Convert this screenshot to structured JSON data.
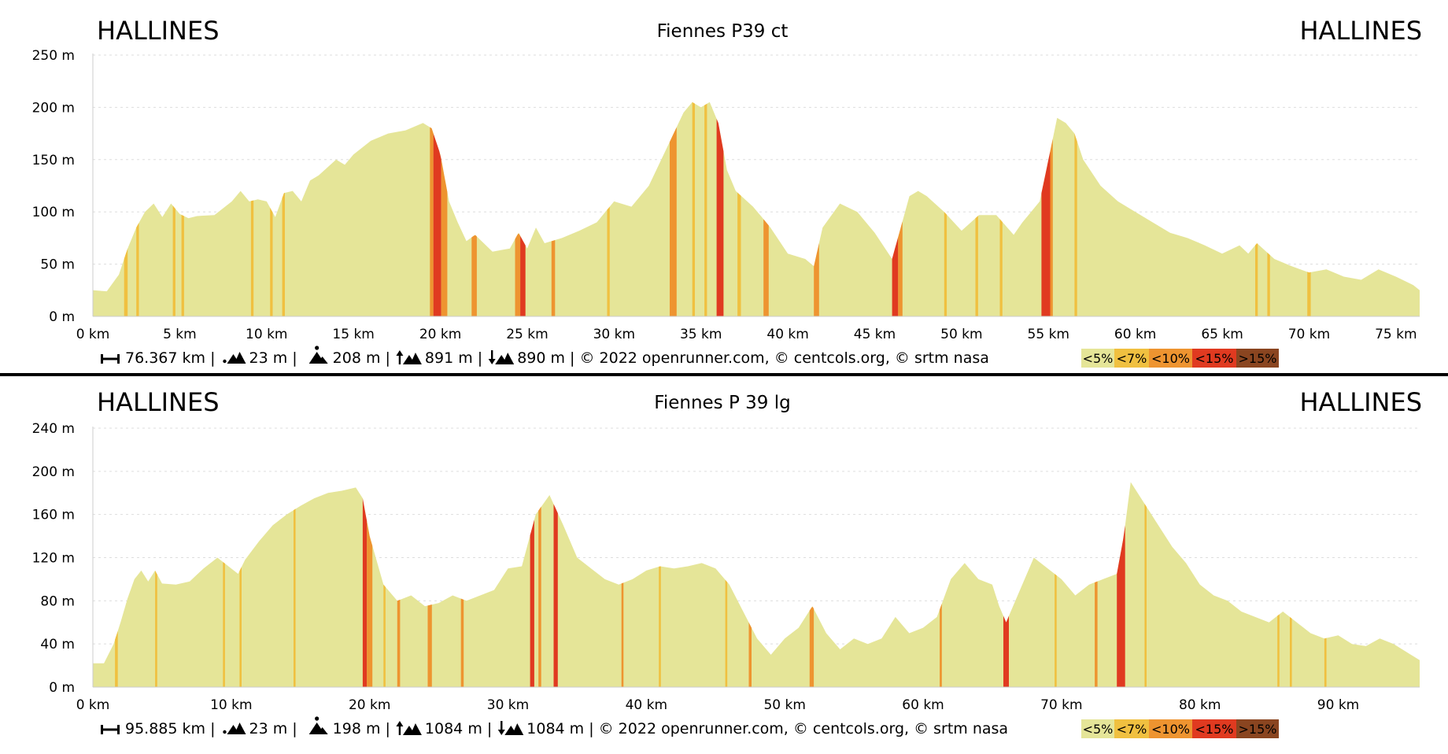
{
  "legend": [
    {
      "label": "<5%",
      "color": "#e5e598"
    },
    {
      "label": "<7%",
      "color": "#f0c040"
    },
    {
      "label": "<10%",
      "color": "#ee9430"
    },
    {
      "label": "<15%",
      "color": "#e03a20"
    },
    {
      "label": ">15%",
      "color": "#8a4520"
    }
  ],
  "chart_data": [
    {
      "type": "area",
      "title": "Fiennes P39 ct",
      "start_place": "HALLINES",
      "end_place": "HALLINES",
      "xlabel": "",
      "ylabel": "",
      "xlim": [
        0,
        76.367
      ],
      "ylim": [
        0,
        250
      ],
      "x_ticks": [
        0,
        5,
        10,
        15,
        20,
        25,
        30,
        35,
        40,
        45,
        50,
        55,
        60,
        65,
        70,
        75
      ],
      "x_tick_labels": [
        "0 km",
        "5 km",
        "10 km",
        "15 km",
        "20 km",
        "25 km",
        "30 km",
        "35 km",
        "40 km",
        "45 km",
        "50 km",
        "55 km",
        "60 km",
        "65 km",
        "70 km",
        "75 km"
      ],
      "y_ticks": [
        0,
        50,
        100,
        150,
        200,
        250
      ],
      "y_tick_labels": [
        "0 m",
        "50 m",
        "100 m",
        "150 m",
        "200 m",
        "250 m"
      ],
      "grid": true,
      "profile": {
        "x": [
          0,
          0.8,
          1.5,
          2.0,
          2.5,
          3.0,
          3.5,
          4.0,
          4.5,
          5.0,
          5.5,
          6.0,
          7.0,
          8.0,
          8.5,
          9.0,
          9.5,
          10.0,
          10.5,
          11.0,
          11.5,
          12.0,
          12.5,
          13.0,
          14.0,
          14.5,
          15.0,
          16.0,
          17.0,
          18.0,
          19.0,
          19.5,
          20.0,
          20.5,
          21.0,
          21.5,
          22.0,
          22.5,
          23.0,
          24.0,
          24.5,
          25.0,
          25.5,
          26.0,
          27.0,
          28.0,
          29.0,
          30.0,
          31.0,
          32.0,
          33.0,
          34.0,
          34.5,
          35.0,
          35.5,
          36.0,
          36.5,
          37.0,
          38.0,
          38.5,
          39.0,
          40.0,
          41.0,
          41.5,
          42.0,
          43.0,
          44.0,
          45.0,
          46.0,
          46.5,
          47.0,
          47.5,
          48.0,
          49.0,
          50.0,
          51.0,
          52.0,
          53.0,
          53.5,
          54.0,
          54.5,
          55.0,
          55.5,
          56.0,
          56.5,
          57.0,
          58.0,
          59.0,
          60.0,
          61.0,
          62.0,
          63.0,
          64.0,
          65.0,
          66.0,
          66.5,
          67.0,
          68.0,
          69.0,
          70.0,
          71.0,
          72.0,
          73.0,
          74.0,
          75.0,
          76.0,
          76.367
        ],
        "y": [
          25,
          24,
          40,
          65,
          85,
          100,
          108,
          95,
          108,
          98,
          94,
          96,
          97,
          110,
          120,
          110,
          112,
          110,
          95,
          118,
          120,
          110,
          130,
          135,
          150,
          145,
          155,
          168,
          175,
          178,
          185,
          180,
          155,
          110,
          90,
          72,
          78,
          70,
          62,
          65,
          80,
          65,
          85,
          70,
          75,
          82,
          90,
          110,
          105,
          125,
          160,
          195,
          205,
          200,
          205,
          185,
          140,
          120,
          105,
          95,
          85,
          60,
          55,
          48,
          85,
          108,
          100,
          80,
          55,
          85,
          115,
          120,
          115,
          100,
          82,
          97,
          97,
          78,
          90,
          100,
          110,
          150,
          190,
          185,
          175,
          150,
          125,
          110,
          100,
          90,
          80,
          75,
          68,
          60,
          68,
          60,
          70,
          55,
          48,
          42,
          45,
          38,
          35,
          45,
          38,
          30,
          25
        ]
      },
      "gradient_segments": [
        {
          "x0": 1.8,
          "x1": 2.0,
          "grade": "<7%"
        },
        {
          "x0": 2.5,
          "x1": 2.65,
          "grade": "<7%"
        },
        {
          "x0": 4.6,
          "x1": 4.75,
          "grade": "<7%"
        },
        {
          "x0": 5.1,
          "x1": 5.25,
          "grade": "<7%"
        },
        {
          "x0": 9.1,
          "x1": 9.25,
          "grade": "<7%"
        },
        {
          "x0": 10.2,
          "x1": 10.35,
          "grade": "<7%"
        },
        {
          "x0": 10.9,
          "x1": 11.05,
          "grade": "<7%"
        },
        {
          "x0": 19.4,
          "x1": 19.6,
          "grade": "<10%"
        },
        {
          "x0": 19.6,
          "x1": 20.05,
          "grade": "<15%"
        },
        {
          "x0": 20.05,
          "x1": 20.4,
          "grade": "<10%"
        },
        {
          "x0": 21.8,
          "x1": 22.1,
          "grade": "<10%"
        },
        {
          "x0": 24.3,
          "x1": 24.6,
          "grade": "<10%"
        },
        {
          "x0": 24.6,
          "x1": 24.9,
          "grade": "<15%"
        },
        {
          "x0": 26.4,
          "x1": 26.6,
          "grade": "<10%"
        },
        {
          "x0": 29.6,
          "x1": 29.75,
          "grade": "<7%"
        },
        {
          "x0": 33.2,
          "x1": 33.6,
          "grade": "<10%"
        },
        {
          "x0": 34.5,
          "x1": 34.65,
          "grade": "<7%"
        },
        {
          "x0": 35.2,
          "x1": 35.35,
          "grade": "<7%"
        },
        {
          "x0": 35.9,
          "x1": 36.3,
          "grade": "<15%"
        },
        {
          "x0": 37.1,
          "x1": 37.3,
          "grade": "<7%"
        },
        {
          "x0": 38.6,
          "x1": 38.9,
          "grade": "<10%"
        },
        {
          "x0": 41.5,
          "x1": 41.8,
          "grade": "<10%"
        },
        {
          "x0": 46.0,
          "x1": 46.35,
          "grade": "<15%"
        },
        {
          "x0": 46.35,
          "x1": 46.6,
          "grade": "<10%"
        },
        {
          "x0": 49.0,
          "x1": 49.15,
          "grade": "<7%"
        },
        {
          "x0": 50.8,
          "x1": 50.95,
          "grade": "<7%"
        },
        {
          "x0": 52.2,
          "x1": 52.35,
          "grade": "<7%"
        },
        {
          "x0": 54.6,
          "x1": 55.1,
          "grade": "<15%"
        },
        {
          "x0": 55.1,
          "x1": 55.25,
          "grade": "<10%"
        },
        {
          "x0": 56.5,
          "x1": 56.65,
          "grade": "<7%"
        },
        {
          "x0": 66.9,
          "x1": 67.05,
          "grade": "<7%"
        },
        {
          "x0": 67.6,
          "x1": 67.75,
          "grade": "<7%"
        },
        {
          "x0": 69.9,
          "x1": 70.1,
          "grade": "<7%"
        }
      ],
      "stats": {
        "distance": "76.367 km",
        "min_alt": "23 m",
        "max_alt": "208 m",
        "ascent": "891 m",
        "descent": "890 m",
        "credits": "© 2022 openrunner.com, © centcols.org, © srtm nasa"
      }
    },
    {
      "type": "area",
      "title": "Fiennes P 39 lg",
      "start_place": "HALLINES",
      "end_place": "HALLINES",
      "xlabel": "",
      "ylabel": "",
      "xlim": [
        0,
        95.885
      ],
      "ylim": [
        0,
        240
      ],
      "x_ticks": [
        0,
        10,
        20,
        30,
        40,
        50,
        60,
        70,
        80,
        90
      ],
      "x_tick_labels": [
        "0 km",
        "10 km",
        "20 km",
        "30 km",
        "40 km",
        "50 km",
        "60 km",
        "70 km",
        "80 km",
        "90 km"
      ],
      "y_ticks": [
        0,
        40,
        80,
        120,
        160,
        200,
        240
      ],
      "y_tick_labels": [
        "0 m",
        "40 m",
        "80 m",
        "120 m",
        "160 m",
        "200 m",
        "240 m"
      ],
      "grid": true,
      "profile": {
        "x": [
          0,
          0.8,
          1.5,
          2.0,
          2.5,
          3.0,
          3.5,
          4.0,
          4.5,
          5.0,
          6.0,
          7.0,
          8.0,
          9.0,
          10.0,
          10.5,
          11.0,
          12.0,
          13.0,
          14.0,
          15.0,
          16.0,
          17.0,
          18.0,
          19.0,
          19.5,
          20.0,
          21.0,
          22.0,
          23.0,
          24.0,
          25.0,
          26.0,
          27.0,
          28.0,
          29.0,
          30.0,
          31.0,
          32.0,
          33.0,
          34.0,
          35.0,
          36.0,
          37.0,
          38.0,
          39.0,
          40.0,
          41.0,
          42.0,
          43.0,
          44.0,
          45.0,
          46.0,
          47.0,
          48.0,
          49.0,
          50.0,
          51.0,
          52.0,
          53.0,
          54.0,
          55.0,
          56.0,
          57.0,
          58.0,
          59.0,
          60.0,
          61.0,
          62.0,
          63.0,
          64.0,
          65.0,
          65.5,
          66.0,
          67.0,
          68.0,
          69.0,
          70.0,
          71.0,
          72.0,
          73.0,
          74.0,
          74.5,
          75.0,
          76.0,
          77.0,
          78.0,
          79.0,
          80.0,
          81.0,
          82.0,
          83.0,
          84.0,
          85.0,
          86.0,
          87.0,
          88.0,
          89.0,
          90.0,
          91.0,
          92.0,
          93.0,
          94.0,
          95.0,
          95.885
        ],
        "y": [
          22,
          22,
          40,
          60,
          82,
          100,
          108,
          98,
          108,
          96,
          95,
          98,
          110,
          120,
          110,
          105,
          118,
          135,
          150,
          160,
          168,
          175,
          180,
          182,
          185,
          175,
          140,
          95,
          80,
          85,
          75,
          78,
          85,
          80,
          85,
          90,
          110,
          112,
          160,
          178,
          150,
          120,
          110,
          100,
          95,
          100,
          108,
          112,
          110,
          112,
          115,
          110,
          95,
          70,
          45,
          30,
          45,
          55,
          75,
          50,
          35,
          45,
          40,
          45,
          65,
          50,
          55,
          65,
          100,
          115,
          100,
          95,
          75,
          60,
          90,
          120,
          110,
          100,
          85,
          95,
          100,
          105,
          140,
          190,
          170,
          150,
          130,
          115,
          95,
          85,
          80,
          70,
          65,
          60,
          70,
          60,
          50,
          45,
          48,
          40,
          38,
          45,
          40,
          32,
          25
        ]
      },
      "gradient_segments": [
        {
          "x0": 1.6,
          "x1": 1.8,
          "grade": "<7%"
        },
        {
          "x0": 4.5,
          "x1": 4.65,
          "grade": "<7%"
        },
        {
          "x0": 9.4,
          "x1": 9.55,
          "grade": "<7%"
        },
        {
          "x0": 10.6,
          "x1": 10.75,
          "grade": "<7%"
        },
        {
          "x0": 14.5,
          "x1": 14.65,
          "grade": "<7%"
        },
        {
          "x0": 19.5,
          "x1": 19.8,
          "grade": "<15%"
        },
        {
          "x0": 19.8,
          "x1": 20.2,
          "grade": "<10%"
        },
        {
          "x0": 21.0,
          "x1": 21.15,
          "grade": "<7%"
        },
        {
          "x0": 22.0,
          "x1": 22.2,
          "grade": "<10%"
        },
        {
          "x0": 24.2,
          "x1": 24.5,
          "grade": "<10%"
        },
        {
          "x0": 26.6,
          "x1": 26.8,
          "grade": "<10%"
        },
        {
          "x0": 31.6,
          "x1": 31.9,
          "grade": "<15%"
        },
        {
          "x0": 32.2,
          "x1": 32.4,
          "grade": "<10%"
        },
        {
          "x0": 33.3,
          "x1": 33.6,
          "grade": "<15%"
        },
        {
          "x0": 38.2,
          "x1": 38.35,
          "grade": "<10%"
        },
        {
          "x0": 40.9,
          "x1": 41.05,
          "grade": "<7%"
        },
        {
          "x0": 45.7,
          "x1": 45.85,
          "grade": "<7%"
        },
        {
          "x0": 47.4,
          "x1": 47.6,
          "grade": "<10%"
        },
        {
          "x0": 51.8,
          "x1": 52.1,
          "grade": "<10%"
        },
        {
          "x0": 61.2,
          "x1": 61.35,
          "grade": "<10%"
        },
        {
          "x0": 65.8,
          "x1": 66.2,
          "grade": "<15%"
        },
        {
          "x0": 69.5,
          "x1": 69.65,
          "grade": "<7%"
        },
        {
          "x0": 72.4,
          "x1": 72.6,
          "grade": "<10%"
        },
        {
          "x0": 74.0,
          "x1": 74.6,
          "grade": "<15%"
        },
        {
          "x0": 76.0,
          "x1": 76.15,
          "grade": "<7%"
        },
        {
          "x0": 85.6,
          "x1": 85.75,
          "grade": "<7%"
        },
        {
          "x0": 86.5,
          "x1": 86.65,
          "grade": "<7%"
        },
        {
          "x0": 89.0,
          "x1": 89.15,
          "grade": "<7%"
        }
      ],
      "stats": {
        "distance": "95.885 km",
        "min_alt": "23 m",
        "max_alt": "198 m",
        "ascent": "1084 m",
        "descent": "1084 m",
        "credits": "© 2022 openrunner.com, © centcols.org, © srtm nasa"
      }
    }
  ]
}
